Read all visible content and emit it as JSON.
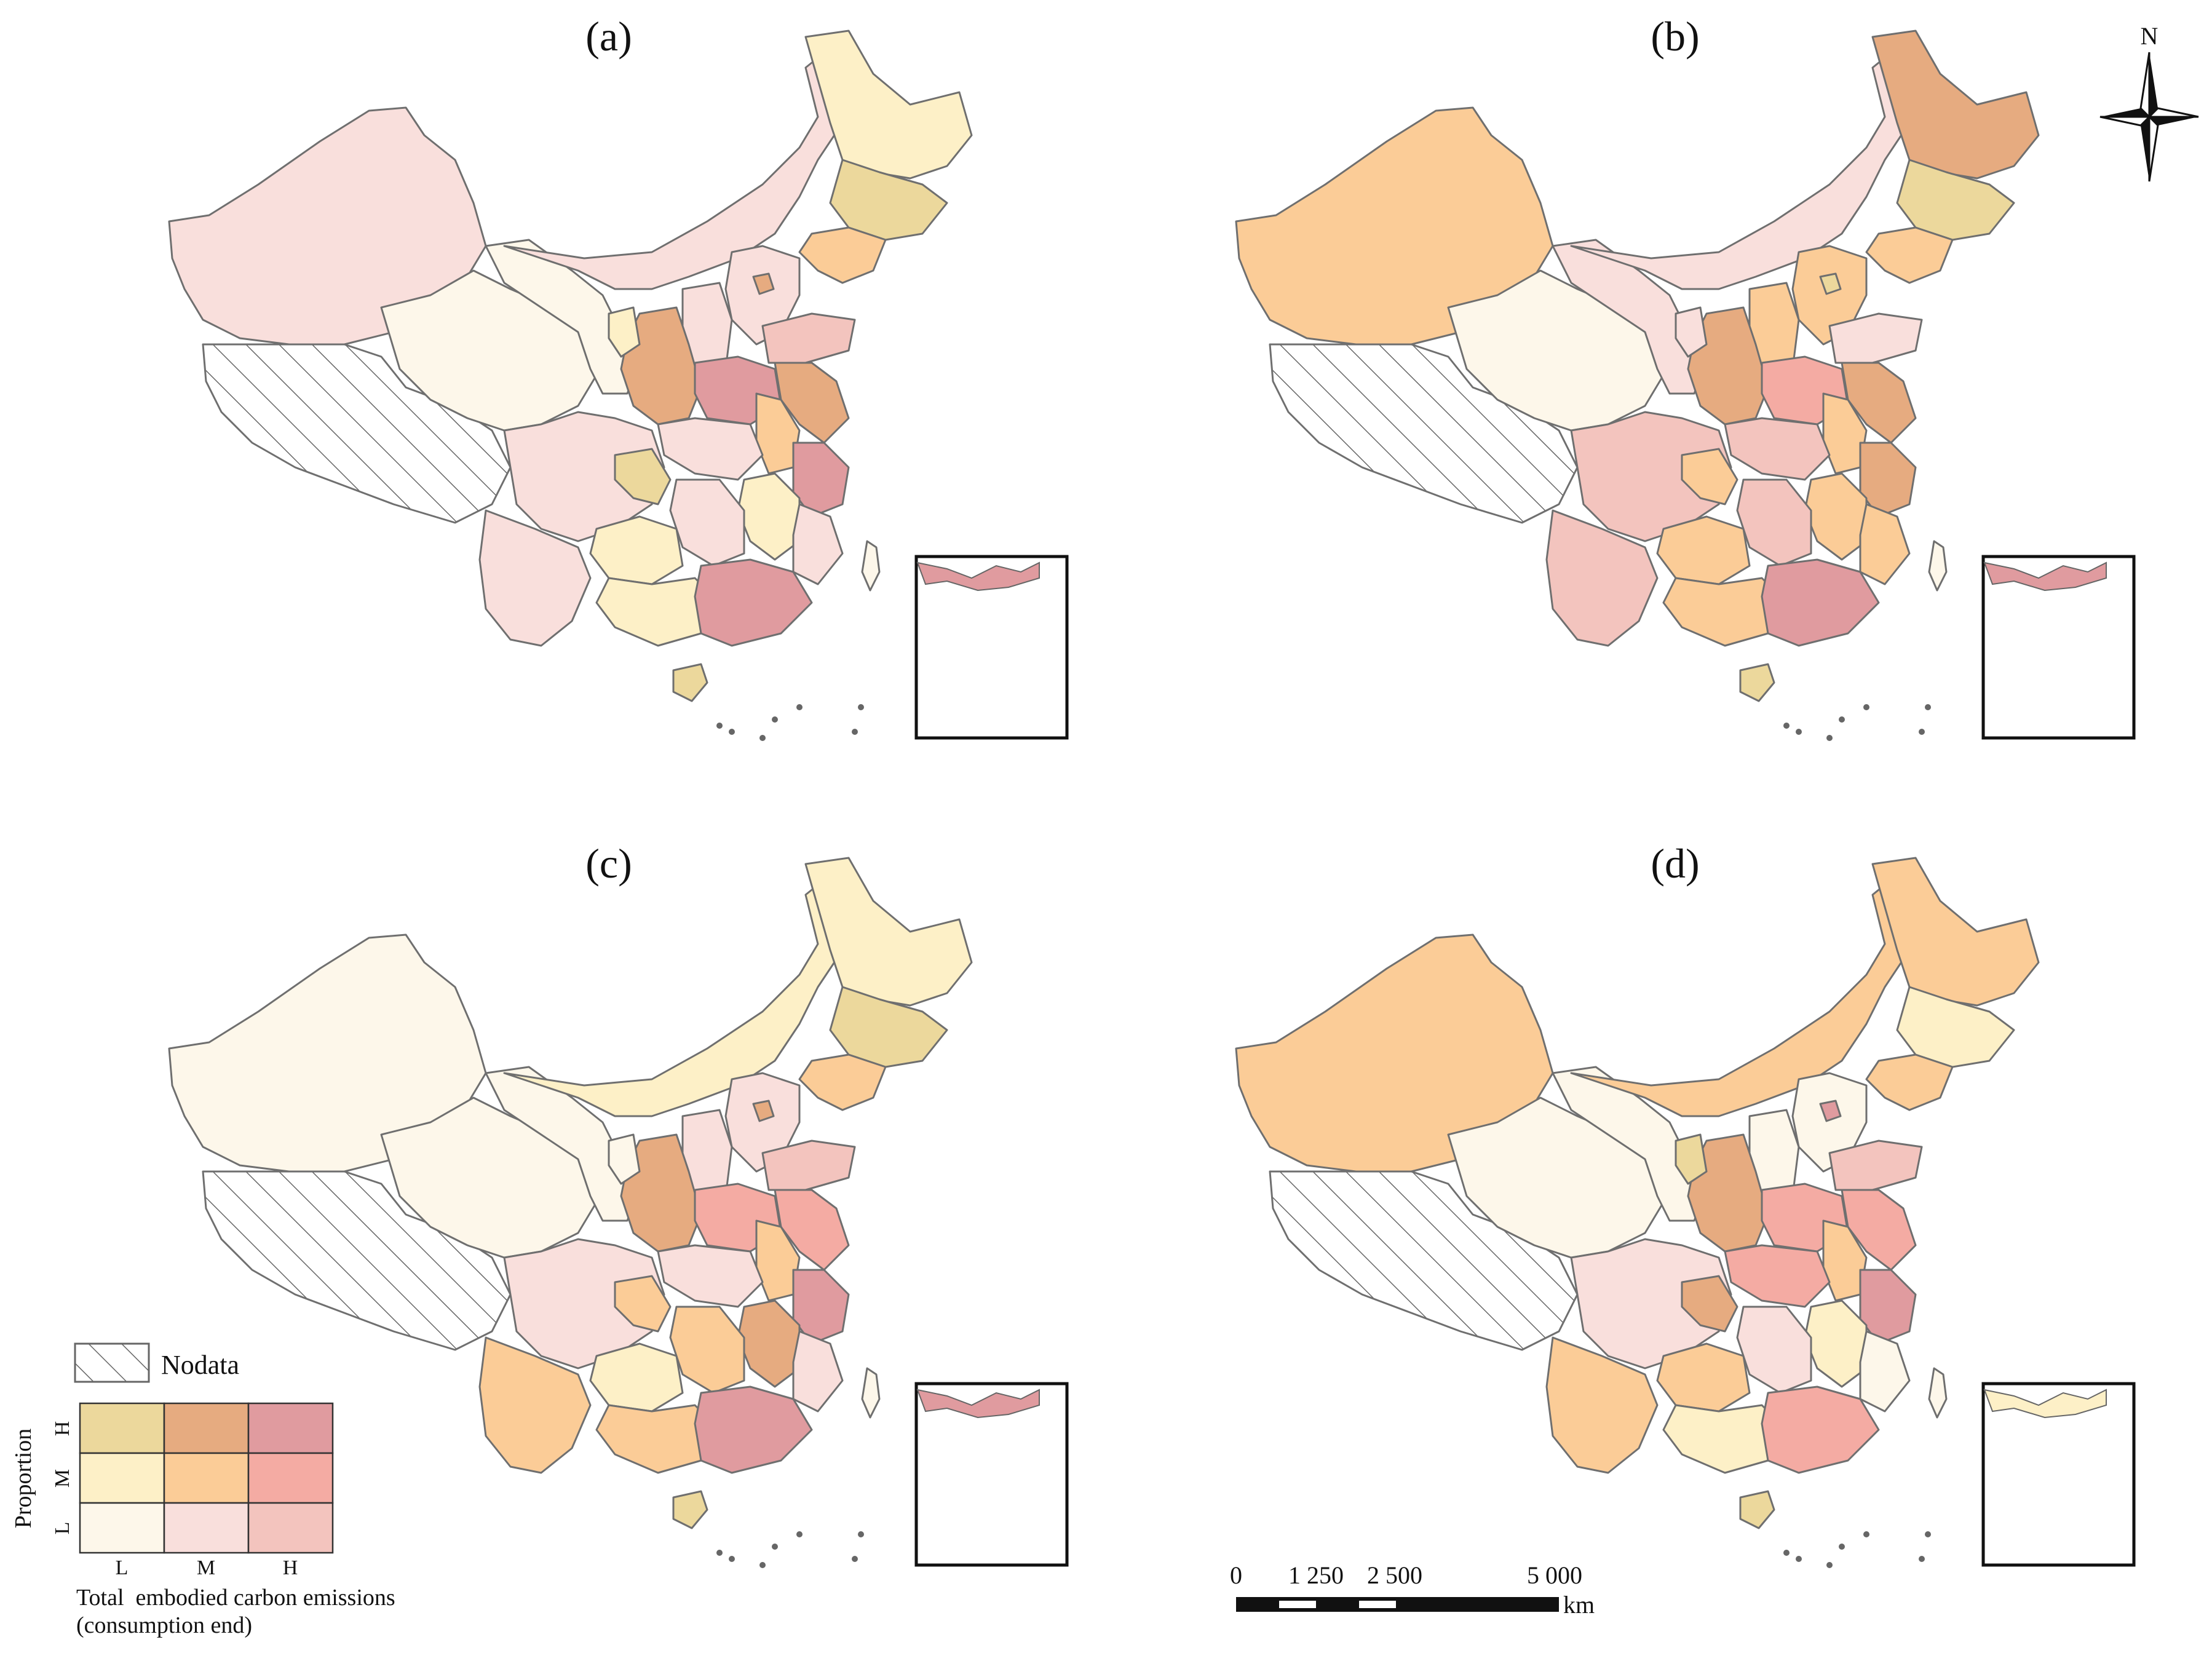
{
  "panels": [
    {
      "label": "(a)"
    },
    {
      "label": "(b)"
    },
    {
      "label": "(c)"
    },
    {
      "label": "(d)"
    }
  ],
  "compass": {
    "label": "N"
  },
  "legend": {
    "nodata_label": "Nodata",
    "y_axis_label": "Proportion",
    "y_levels": [
      "H",
      "M",
      "L"
    ],
    "x_levels": [
      "L",
      "M",
      "H"
    ],
    "x_axis_label_line1": "Total  embodied carbon emissions",
    "x_axis_label_line2": "(consumption end)",
    "colors": {
      "LL": "#fdf7ea",
      "ML": "#f9dfdc",
      "HL": "#f3c4be",
      "LM": "#fdf0c7",
      "MM": "#fbcc97",
      "HM": "#f4aba3",
      "LH": "#ecd89c",
      "MH": "#e6ab80",
      "HH": "#e09b9f"
    },
    "nodata_pattern": "diagonal-hatch"
  },
  "scalebar": {
    "labels": [
      "0",
      "1 250",
      "2 500",
      "5 000"
    ],
    "unit": "km"
  }
}
